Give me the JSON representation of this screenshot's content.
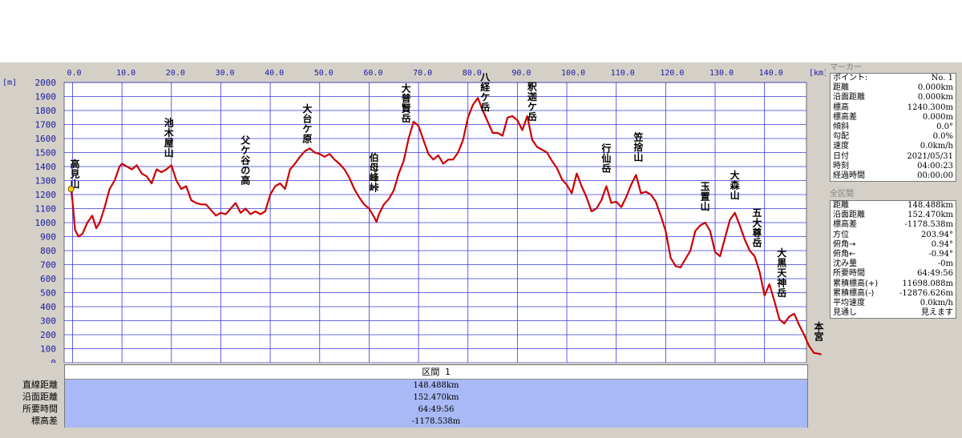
{
  "chart_data": {
    "type": "line",
    "x_unit": "[km]",
    "y_unit": "[m]",
    "xlim": [
      -1.7,
      148.488
    ],
    "ylim": [
      0,
      2000
    ],
    "x_ticks": [
      0,
      10,
      20,
      30,
      40,
      50,
      60,
      70,
      80,
      90,
      100,
      110,
      120,
      130,
      140
    ],
    "x_tick_labels": [
      "0.0",
      "10.0",
      "20.0",
      "30.0",
      "40.0",
      "50.0",
      "60.0",
      "70.0",
      "80.0",
      "90.0",
      "100.0",
      "110.0",
      "120.0",
      "130.0",
      "140.0"
    ],
    "y_ticks": [
      0,
      100,
      200,
      300,
      400,
      500,
      600,
      700,
      800,
      900,
      1000,
      1100,
      1200,
      1300,
      1400,
      1500,
      1600,
      1700,
      1800,
      1900,
      2000
    ],
    "grid": true,
    "line_color": "#cc0000",
    "series": [
      {
        "points": [
          [
            -0.3,
            1240
          ],
          [
            0,
            1150
          ],
          [
            0.5,
            950
          ],
          [
            1.2,
            900
          ],
          [
            2,
            920
          ],
          [
            3,
            1000
          ],
          [
            4,
            1050
          ],
          [
            4.8,
            960
          ],
          [
            5.5,
            1000
          ],
          [
            6.5,
            1110
          ],
          [
            7.5,
            1240
          ],
          [
            8.5,
            1300
          ],
          [
            9.5,
            1400
          ],
          [
            10,
            1420
          ],
          [
            11,
            1400
          ],
          [
            12,
            1380
          ],
          [
            13,
            1410
          ],
          [
            14,
            1350
          ],
          [
            15,
            1330
          ],
          [
            16,
            1280
          ],
          [
            17,
            1380
          ],
          [
            18,
            1360
          ],
          [
            19,
            1380
          ],
          [
            20,
            1410
          ],
          [
            21,
            1300
          ],
          [
            22,
            1240
          ],
          [
            23,
            1260
          ],
          [
            24,
            1160
          ],
          [
            25,
            1140
          ],
          [
            26,
            1130
          ],
          [
            27,
            1130
          ],
          [
            28,
            1090
          ],
          [
            29,
            1050
          ],
          [
            30,
            1070
          ],
          [
            31,
            1060
          ],
          [
            32,
            1100
          ],
          [
            33,
            1140
          ],
          [
            34,
            1070
          ],
          [
            35,
            1100
          ],
          [
            36,
            1060
          ],
          [
            37,
            1080
          ],
          [
            38,
            1060
          ],
          [
            39,
            1080
          ],
          [
            40,
            1200
          ],
          [
            41,
            1260
          ],
          [
            42,
            1280
          ],
          [
            43,
            1240
          ],
          [
            44,
            1380
          ],
          [
            45,
            1420
          ],
          [
            46,
            1470
          ],
          [
            47,
            1510
          ],
          [
            48,
            1530
          ],
          [
            49,
            1500
          ],
          [
            50,
            1490
          ],
          [
            51,
            1470
          ],
          [
            52,
            1490
          ],
          [
            53,
            1450
          ],
          [
            54,
            1420
          ],
          [
            55,
            1380
          ],
          [
            56,
            1320
          ],
          [
            57,
            1240
          ],
          [
            58,
            1180
          ],
          [
            59,
            1130
          ],
          [
            60,
            1100
          ],
          [
            61,
            1040
          ],
          [
            61.5,
            1005
          ],
          [
            62,
            1060
          ],
          [
            63,
            1130
          ],
          [
            64,
            1170
          ],
          [
            65,
            1230
          ],
          [
            66,
            1350
          ],
          [
            67,
            1440
          ],
          [
            68,
            1600
          ],
          [
            69,
            1720
          ],
          [
            70,
            1690
          ],
          [
            71,
            1590
          ],
          [
            72,
            1490
          ],
          [
            73,
            1450
          ],
          [
            74,
            1480
          ],
          [
            75,
            1420
          ],
          [
            76,
            1450
          ],
          [
            77,
            1450
          ],
          [
            78,
            1500
          ],
          [
            79,
            1590
          ],
          [
            80,
            1750
          ],
          [
            81,
            1840
          ],
          [
            82,
            1890
          ],
          [
            83,
            1800
          ],
          [
            84,
            1720
          ],
          [
            85,
            1640
          ],
          [
            86,
            1640
          ],
          [
            87,
            1620
          ],
          [
            88,
            1750
          ],
          [
            89,
            1760
          ],
          [
            90,
            1730
          ],
          [
            91,
            1660
          ],
          [
            92,
            1760
          ],
          [
            93,
            1590
          ],
          [
            94,
            1540
          ],
          [
            95,
            1520
          ],
          [
            96,
            1500
          ],
          [
            97,
            1440
          ],
          [
            98,
            1390
          ],
          [
            99,
            1310
          ],
          [
            100,
            1270
          ],
          [
            101,
            1210
          ],
          [
            102,
            1350
          ],
          [
            103,
            1260
          ],
          [
            104,
            1180
          ],
          [
            105,
            1080
          ],
          [
            106,
            1100
          ],
          [
            107,
            1160
          ],
          [
            108,
            1260
          ],
          [
            109,
            1140
          ],
          [
            110,
            1150
          ],
          [
            111,
            1110
          ],
          [
            112,
            1180
          ],
          [
            113,
            1270
          ],
          [
            114,
            1340
          ],
          [
            115,
            1210
          ],
          [
            116,
            1220
          ],
          [
            117,
            1200
          ],
          [
            118,
            1150
          ],
          [
            119,
            1050
          ],
          [
            120,
            940
          ],
          [
            121,
            750
          ],
          [
            122,
            690
          ],
          [
            123,
            680
          ],
          [
            124,
            740
          ],
          [
            125,
            800
          ],
          [
            126,
            940
          ],
          [
            127,
            980
          ],
          [
            128,
            1000
          ],
          [
            129,
            940
          ],
          [
            130,
            790
          ],
          [
            131,
            760
          ],
          [
            132,
            890
          ],
          [
            133,
            1020
          ],
          [
            134,
            1070
          ],
          [
            135,
            980
          ],
          [
            136,
            880
          ],
          [
            137,
            800
          ],
          [
            138,
            760
          ],
          [
            139,
            650
          ],
          [
            140,
            480
          ],
          [
            141,
            560
          ],
          [
            142,
            440
          ],
          [
            143,
            310
          ],
          [
            144,
            280
          ],
          [
            145,
            330
          ],
          [
            146,
            350
          ],
          [
            147,
            270
          ],
          [
            148,
            200
          ],
          [
            149,
            120
          ],
          [
            150,
            70
          ],
          [
            150.8,
            65
          ],
          [
            151.5,
            60
          ]
        ]
      }
    ],
    "peaks": [
      {
        "name": "高見山",
        "x": 0.5,
        "y": 1395
      },
      {
        "name": "池木屋山",
        "x": 19.5,
        "y": 1688
      },
      {
        "name": "父ケ谷の高",
        "x": 35,
        "y": 1563
      },
      {
        "name": "大台ケ原",
        "x": 47.5,
        "y": 1790
      },
      {
        "name": "伯母峰峠",
        "x": 61,
        "y": 1440
      },
      {
        "name": "大普賢岳",
        "x": 67.5,
        "y": 1935
      },
      {
        "name": "八経ケ岳",
        "x": 83.5,
        "y": 2015
      },
      {
        "name": "釈迦ケ岳",
        "x": 93,
        "y": 1945
      },
      {
        "name": "行仙岳",
        "x": 108,
        "y": 1505
      },
      {
        "name": "笠捨山",
        "x": 114.5,
        "y": 1585
      },
      {
        "name": "玉置山",
        "x": 128,
        "y": 1235
      },
      {
        "name": "大森山",
        "x": 134,
        "y": 1315
      },
      {
        "name": "五大尊岳",
        "x": 138.5,
        "y": 1045
      },
      {
        "name": "大黒天神岳",
        "x": 143.5,
        "y": 760
      },
      {
        "name": "本宮",
        "x": 151,
        "y": 235
      }
    ]
  },
  "section": {
    "header": "区間 1",
    "labels": [
      "直線距離",
      "沿面距離",
      "所要時間",
      "標高差"
    ],
    "values": [
      "148.488km",
      "152.470km",
      "64:49:56",
      "-1178.538m"
    ]
  },
  "marker_panel": {
    "title": "マーカー",
    "rows": [
      {
        "k": "ポイント:",
        "v": "No. 1"
      },
      {
        "k": "距離",
        "v": "0.000km"
      },
      {
        "k": "沿面距離",
        "v": "0.000km"
      },
      {
        "k": "標高",
        "v": "1240.300m"
      },
      {
        "k": "標高差",
        "v": "0.000m"
      },
      {
        "k": "傾斜",
        "v": "0.0°"
      },
      {
        "k": "勾配",
        "v": "0.0%"
      },
      {
        "k": "速度",
        "v": "0.0km/h"
      },
      {
        "k": "日付",
        "v": "2021/05/31"
      },
      {
        "k": "時刻",
        "v": "04:00:23"
      },
      {
        "k": "経過時間",
        "v": "00:00:00"
      }
    ]
  },
  "total_panel": {
    "title": "全区間",
    "rows": [
      {
        "k": "距離",
        "v": "148.488km"
      },
      {
        "k": "沿面距離",
        "v": "152.470km"
      },
      {
        "k": "標高差",
        "v": "-1178.538m"
      },
      {
        "k": "方位",
        "v": "203.94°"
      },
      {
        "k": "俯角→",
        "v": "0.94°"
      },
      {
        "k": "俯角←",
        "v": "-0.94°"
      },
      {
        "k": "沈み量",
        "v": "-0m"
      },
      {
        "k": "所要時間",
        "v": "64:49:56"
      },
      {
        "k": "累積標高(+)",
        "v": "11698.088m"
      },
      {
        "k": "累積標高(-)",
        "v": "-12876.626m"
      },
      {
        "k": "平均速度",
        "v": "0.0km/h"
      },
      {
        "k": "見通し",
        "v": "見えます"
      }
    ]
  }
}
